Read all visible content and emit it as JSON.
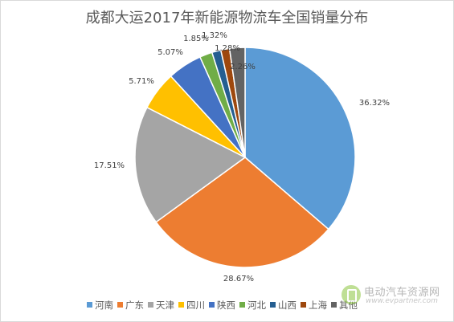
{
  "chart_data": {
    "type": "pie",
    "title": "成都大运2017年新能源物流车全国销量分布",
    "series": [
      {
        "name": "河南",
        "value": 36.32,
        "label": "36.32%",
        "color": "#5b9bd5"
      },
      {
        "name": "广东",
        "value": 28.67,
        "label": "28.67%",
        "color": "#ed7d31"
      },
      {
        "name": "天津",
        "value": 17.51,
        "label": "17.51%",
        "color": "#a5a5a5"
      },
      {
        "name": "四川",
        "value": 5.71,
        "label": "5.71%",
        "color": "#ffc000"
      },
      {
        "name": "陕西",
        "value": 5.07,
        "label": "5.07%",
        "color": "#4472c4"
      },
      {
        "name": "河北",
        "value": 1.85,
        "label": "1.85%",
        "color": "#70ad47"
      },
      {
        "name": "山西",
        "value": 1.32,
        "label": "1.32%",
        "color": "#255e91"
      },
      {
        "name": "上海",
        "value": 1.28,
        "label": "1.28%",
        "color": "#9e480e"
      },
      {
        "name": "其他",
        "value": 2.26,
        "label": "2.26%",
        "color": "#636363"
      }
    ],
    "start_angle": "12 o'clock",
    "direction": "clockwise",
    "legend_position": "bottom"
  },
  "watermark": {
    "text": "电动汽车资源网",
    "url": "www.evpartner.com"
  }
}
